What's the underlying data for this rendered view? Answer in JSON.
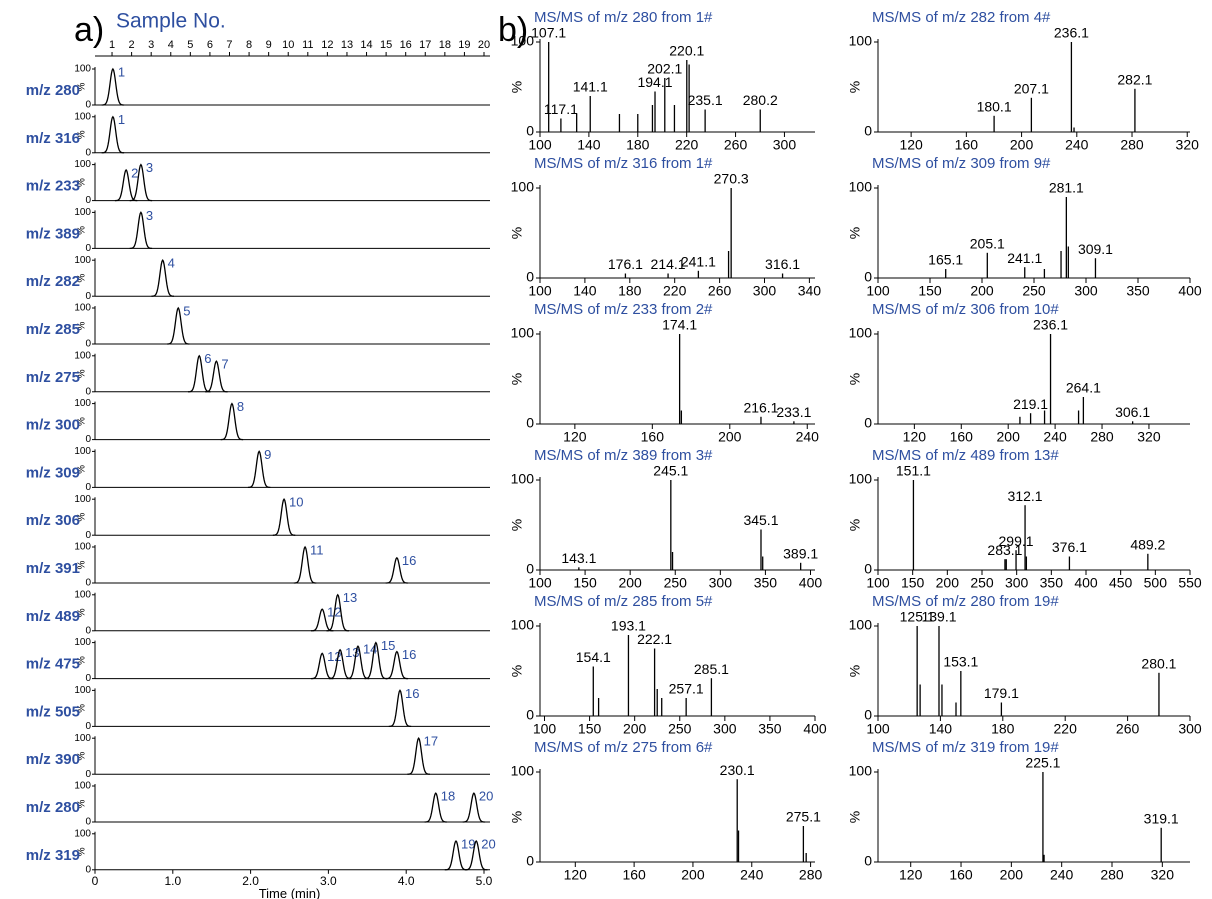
{
  "chart_data": [
    {
      "type": "chromatogram",
      "panel_label": "a)",
      "x2label": "Sample No.",
      "xlabel": "Time (min)",
      "ylabel": "%",
      "color": "#000000",
      "label_color": "#2e4fa0",
      "xlim": [
        0,
        5
      ],
      "xticks": [
        0,
        {
          "value": 1,
          "label": "1.0"
        },
        {
          "value": 2,
          "label": "2.0"
        },
        {
          "value": 3,
          "label": "3.0"
        },
        {
          "value": 4,
          "label": "4.0"
        },
        {
          "value": 5,
          "label": "5.0"
        }
      ],
      "x2lim": [
        0.13,
        20
      ],
      "x2ticks": [
        1,
        2,
        3,
        4,
        5,
        6,
        7,
        8,
        9,
        10,
        11,
        12,
        13,
        14,
        15,
        16,
        17,
        18,
        19,
        20
      ],
      "ylim": [
        0,
        100
      ],
      "yticks": [
        0,
        100
      ],
      "series": [
        {
          "name": "m/z 280",
          "x": [
            0.23
          ],
          "values": [
            100
          ],
          "labels": [
            1
          ]
        },
        {
          "name": "m/z 316",
          "x": [
            0.23
          ],
          "values": [
            100
          ],
          "labels": [
            1
          ]
        },
        {
          "name": "m/z 233",
          "x": [
            0.4,
            0.59
          ],
          "values": [
            85,
            100
          ],
          "labels": [
            2,
            3
          ]
        },
        {
          "name": "m/z 389",
          "x": [
            0.59
          ],
          "values": [
            100
          ],
          "labels": [
            3
          ]
        },
        {
          "name": "m/z 282",
          "x": [
            0.87
          ],
          "values": [
            100
          ],
          "labels": [
            4
          ]
        },
        {
          "name": "m/z 285",
          "x": [
            1.07
          ],
          "values": [
            100
          ],
          "labels": [
            5
          ]
        },
        {
          "name": "m/z 275",
          "x": [
            1.34,
            1.56
          ],
          "values": [
            100,
            85
          ],
          "labels": [
            6,
            7
          ]
        },
        {
          "name": "m/z 300",
          "x": [
            1.76
          ],
          "values": [
            100
          ],
          "labels": [
            8
          ]
        },
        {
          "name": "m/z 309",
          "x": [
            2.11
          ],
          "values": [
            100
          ],
          "labels": [
            9
          ]
        },
        {
          "name": "m/z 306",
          "x": [
            2.43
          ],
          "values": [
            100
          ],
          "labels": [
            10
          ]
        },
        {
          "name": "m/z 391",
          "x": [
            2.7,
            3.88
          ],
          "values": [
            100,
            70
          ],
          "labels": [
            11,
            16
          ]
        },
        {
          "name": "m/z 489",
          "x": [
            2.92,
            3.12
          ],
          "values": [
            60,
            100
          ],
          "labels": [
            12,
            13
          ]
        },
        {
          "name": "m/z 475",
          "x": [
            2.92,
            3.15,
            3.38,
            3.61,
            3.88
          ],
          "values": [
            70,
            80,
            90,
            100,
            75
          ],
          "labels": [
            12,
            13,
            14,
            15,
            16
          ]
        },
        {
          "name": "m/z 505",
          "x": [
            3.92
          ],
          "values": [
            100
          ],
          "labels": [
            16
          ]
        },
        {
          "name": "m/z 390",
          "x": [
            4.16
          ],
          "values": [
            100
          ],
          "labels": [
            17
          ]
        },
        {
          "name": "m/z 280",
          "x": [
            4.38,
            4.87
          ],
          "values": [
            80,
            80
          ],
          "labels": [
            18,
            20
          ]
        },
        {
          "name": "m/z 319",
          "x": [
            4.64,
            4.9
          ],
          "values": [
            80,
            80
          ],
          "labels": [
            19,
            20
          ]
        }
      ]
    },
    {
      "type": "spectrum",
      "panel_label": "b)",
      "title": "MS/MS of m/z 280 from 1#",
      "ylabel": "%",
      "color": "#000000",
      "title_color": "#2e4fa0",
      "xlim": [
        100,
        325
      ],
      "xticks": [
        100,
        140,
        180,
        220,
        260,
        300
      ],
      "ylim": [
        0,
        100
      ],
      "yticks": [
        0,
        100
      ],
      "labeled": {
        "x": [
          107.1,
          117.1,
          141.1,
          194.1,
          202.1,
          220.1,
          235.1,
          280.2
        ],
        "values": [
          100,
          15,
          40,
          45,
          60,
          80,
          25,
          25
        ]
      },
      "minor": {
        "x": [
          130,
          165,
          180,
          192,
          210,
          222
        ],
        "values": [
          20,
          20,
          20,
          30,
          30,
          75
        ]
      }
    },
    {
      "type": "spectrum",
      "title": "MS/MS of m/z 282 from 4#",
      "ylabel": "%",
      "color": "#000000",
      "title_color": "#2e4fa0",
      "xlim": [
        96,
        322
      ],
      "xticks": [
        120,
        160,
        200,
        240,
        280,
        320
      ],
      "ylim": [
        0,
        100
      ],
      "yticks": [
        0,
        100
      ],
      "labeled": {
        "x": [
          180.1,
          207.1,
          236.1,
          282.1
        ],
        "values": [
          18,
          38,
          100,
          48
        ]
      },
      "minor": {
        "x": [
          238
        ],
        "values": [
          5
        ]
      }
    },
    {
      "type": "spectrum",
      "title": "MS/MS of m/z 316 from 1#",
      "ylabel": "%",
      "color": "#000000",
      "title_color": "#2e4fa0",
      "xlim": [
        100,
        345
      ],
      "xticks": [
        100,
        140,
        180,
        220,
        260,
        300,
        340
      ],
      "ylim": [
        0,
        100
      ],
      "yticks": [
        0,
        100
      ],
      "labeled": {
        "x": [
          176.1,
          214.1,
          241.1,
          270.3,
          316.1
        ],
        "values": [
          5,
          5,
          8,
          100,
          5
        ]
      },
      "minor": {
        "x": [
          268
        ],
        "values": [
          30
        ]
      }
    },
    {
      "type": "spectrum",
      "title": "MS/MS of m/z 309 from 9#",
      "ylabel": "%",
      "color": "#000000",
      "title_color": "#2e4fa0",
      "xlim": [
        100,
        400
      ],
      "xticks": [
        100,
        150,
        200,
        250,
        300,
        350,
        400
      ],
      "ylim": [
        0,
        100
      ],
      "yticks": [
        0,
        100
      ],
      "labeled": {
        "x": [
          165.1,
          205.1,
          241.1,
          281.1,
          309.1
        ],
        "values": [
          10,
          28,
          12,
          90,
          22
        ]
      },
      "minor": {
        "x": [
          260,
          276,
          283
        ],
        "values": [
          10,
          30,
          35
        ]
      }
    },
    {
      "type": "spectrum",
      "title": "MS/MS of m/z 233 from 2#",
      "ylabel": "%",
      "color": "#000000",
      "title_color": "#2e4fa0",
      "xlim": [
        102,
        244
      ],
      "xticks": [
        120,
        160,
        200,
        240
      ],
      "ylim": [
        0,
        100
      ],
      "yticks": [
        0,
        100
      ],
      "labeled": {
        "x": [
          174.1,
          216.1,
          233.1
        ],
        "values": [
          100,
          8,
          3
        ]
      },
      "minor": {
        "x": [
          175
        ],
        "values": [
          15
        ]
      }
    },
    {
      "type": "spectrum",
      "title": "MS/MS of m/z 306 from 10#",
      "ylabel": "%",
      "color": "#000000",
      "title_color": "#2e4fa0",
      "xlim": [
        89,
        355
      ],
      "xticks": [
        120,
        160,
        200,
        240,
        280,
        320
      ],
      "ylim": [
        0,
        100
      ],
      "yticks": [
        0,
        100
      ],
      "labeled": {
        "x": [
          219.1,
          236.1,
          264.1,
          306.1
        ],
        "values": [
          12,
          100,
          30,
          3
        ]
      },
      "minor": {
        "x": [
          210,
          231,
          260
        ],
        "values": [
          8,
          15,
          15
        ]
      }
    },
    {
      "type": "spectrum",
      "title": "MS/MS of m/z 389 from 3#",
      "ylabel": "%",
      "color": "#000000",
      "title_color": "#2e4fa0",
      "xlim": [
        100,
        405
      ],
      "xticks": [
        100,
        150,
        200,
        250,
        300,
        350,
        400
      ],
      "ylim": [
        0,
        100
      ],
      "yticks": [
        0,
        100
      ],
      "labeled": {
        "x": [
          143.1,
          245.1,
          345.1,
          389.1
        ],
        "values": [
          3,
          100,
          45,
          8
        ]
      },
      "minor": {
        "x": [
          247,
          347
        ],
        "values": [
          20,
          15
        ]
      }
    },
    {
      "type": "spectrum",
      "title": "MS/MS of m/z 489 from 13#",
      "ylabel": "%",
      "color": "#000000",
      "title_color": "#2e4fa0",
      "xlim": [
        100,
        550
      ],
      "xticks": [
        100,
        150,
        200,
        250,
        300,
        350,
        400,
        450,
        500,
        550
      ],
      "ylim": [
        0,
        100
      ],
      "yticks": [
        0,
        100
      ],
      "labeled": {
        "x": [
          151.1,
          283.1,
          299.1,
          312.1,
          376.1,
          489.2
        ],
        "values": [
          100,
          12,
          22,
          72,
          15,
          18
        ]
      },
      "minor": {
        "x": [
          285,
          314
        ],
        "values": [
          12,
          15
        ]
      }
    },
    {
      "type": "spectrum",
      "title": "MS/MS of m/z 285 from 5#",
      "ylabel": "%",
      "color": "#000000",
      "title_color": "#2e4fa0",
      "xlim": [
        95,
        400
      ],
      "xticks": [
        100,
        150,
        200,
        250,
        300,
        350,
        400
      ],
      "ylim": [
        0,
        100
      ],
      "yticks": [
        0,
        100
      ],
      "labeled": {
        "x": [
          154.1,
          193.1,
          222.1,
          257.1,
          285.1
        ],
        "values": [
          55,
          90,
          75,
          20,
          42
        ]
      },
      "minor": {
        "x": [
          160,
          225,
          230
        ],
        "values": [
          20,
          30,
          20
        ]
      }
    },
    {
      "type": "spectrum",
      "title": "MS/MS of m/z 280 from 19#",
      "ylabel": "%",
      "color": "#000000",
      "title_color": "#2e4fa0",
      "xlim": [
        100,
        300
      ],
      "xticks": [
        100,
        140,
        180,
        220,
        260,
        300
      ],
      "ylim": [
        0,
        100
      ],
      "yticks": [
        0,
        100
      ],
      "labeled": {
        "x": [
          125.1,
          139.1,
          153.1,
          179.1,
          280.1
        ],
        "values": [
          100,
          100,
          50,
          15,
          48
        ]
      },
      "minor": {
        "x": [
          127,
          141,
          150
        ],
        "values": [
          35,
          35,
          15
        ]
      }
    },
    {
      "type": "spectrum",
      "title": "MS/MS of m/z 275 from 6#",
      "ylabel": "%",
      "color": "#000000",
      "title_color": "#2e4fa0",
      "xlim": [
        96,
        283
      ],
      "xticks": [
        120,
        160,
        200,
        240,
        280
      ],
      "ylim": [
        0,
        100
      ],
      "yticks": [
        0,
        100
      ],
      "labeled": {
        "x": [
          230.1,
          275.1
        ],
        "values": [
          92,
          40
        ]
      },
      "minor": {
        "x": [
          231,
          277
        ],
        "values": [
          35,
          10
        ]
      }
    },
    {
      "type": "spectrum",
      "title": "MS/MS of m/z 319 from 19#",
      "ylabel": "%",
      "color": "#000000",
      "title_color": "#2e4fa0",
      "xlim": [
        94,
        342
      ],
      "xticks": [
        120,
        160,
        200,
        240,
        280,
        320
      ],
      "ylim": [
        0,
        100
      ],
      "yticks": [
        0,
        100
      ],
      "labeled": {
        "x": [
          225.1,
          319.1
        ],
        "values": [
          100,
          38
        ]
      },
      "minor": {
        "x": [
          226
        ],
        "values": [
          8
        ]
      }
    }
  ]
}
